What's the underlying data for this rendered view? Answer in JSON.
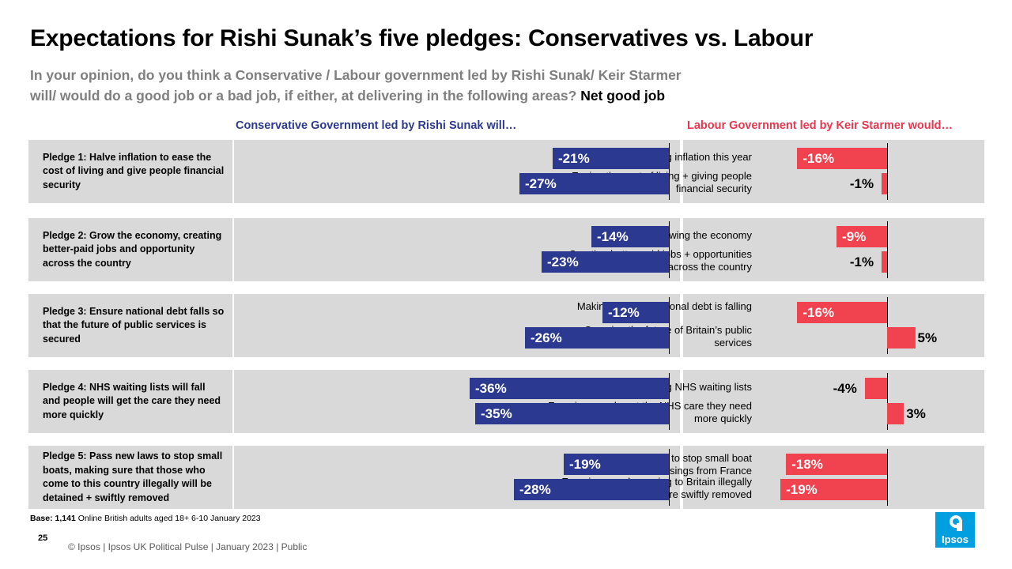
{
  "title": "Expectations for Rishi Sunak’s five pledges: Conservatives vs. Labour",
  "question": {
    "line1": "In your opinion, do you think a Conservative / Labour government led by Rishi Sunak/ Keir Starmer",
    "line2": "will/ would do a good job or a bad job, if either, at delivering in the following areas?",
    "measure": "Net good job"
  },
  "colors": {
    "conservative": "#2b3990",
    "labour": "#f0424f",
    "panel": "#d9d9d9"
  },
  "chart_data": {
    "type": "bar",
    "orientation": "horizontal",
    "series": [
      {
        "name": "Conservative Government led by Rishi Sunak will…",
        "color": "#2b3990"
      },
      {
        "name": "Labour Government led by Keir Starmer would…",
        "color": "#f0424f"
      }
    ],
    "pledges": [
      {
        "label": "Pledge 1: Halve inflation to ease the cost of living and give people financial security",
        "items": [
          {
            "label": "Halving inflation this year",
            "conservative": -21,
            "labour": -16
          },
          {
            "label": "Easing the cost of living + giving people financial security",
            "conservative": -27,
            "labour": -1
          }
        ]
      },
      {
        "label": "Pledge 2: Grow the economy, creating better-paid jobs and opportunity across the country",
        "items": [
          {
            "label": "Growing the economy",
            "conservative": -14,
            "labour": -9
          },
          {
            "label": "Creating better-paid jobs + opportunities right across the country",
            "conservative": -23,
            "labour": -1
          }
        ]
      },
      {
        "label": "Pledge 3: Ensure national debt falls so that the future of public services is secured",
        "items": [
          {
            "label": "Making sure the national debt is falling",
            "conservative": -12,
            "labour": -16
          },
          {
            "label": "Securing the future of Britain’s public services",
            "conservative": -26,
            "labour": 5
          }
        ]
      },
      {
        "label": "Pledge 4: NHS waiting lists will fall and people will get the care they need more quickly",
        "items": [
          {
            "label": "Reducing NHS waiting lists",
            "conservative": -36,
            "labour": -4
          },
          {
            "label": "Ensuring people get the NHS care they need more quickly",
            "conservative": -35,
            "labour": 3
          }
        ]
      },
      {
        "label": "Pledge 5: Pass new laws to stop small boats, making sure that those who come to this country illegally will be detained + swiftly removed",
        "items": [
          {
            "label": "Passing new laws to stop small boat crossings from France",
            "conservative": -19,
            "labour": -18
          },
          {
            "label": "Ensuring people coming to Britain illegally are swiftly removed",
            "conservative": -28,
            "labour": -19
          }
        ]
      }
    ],
    "value_suffix": "%"
  },
  "base": {
    "label": "Base:",
    "count": "1,141",
    "text": "Online British adults aged 18+ 6-10 January 2023"
  },
  "page_number": "25",
  "footer": "© Ipsos | Ipsos UK Political Pulse | January 2023 | Public",
  "logo_text": "Ipsos"
}
